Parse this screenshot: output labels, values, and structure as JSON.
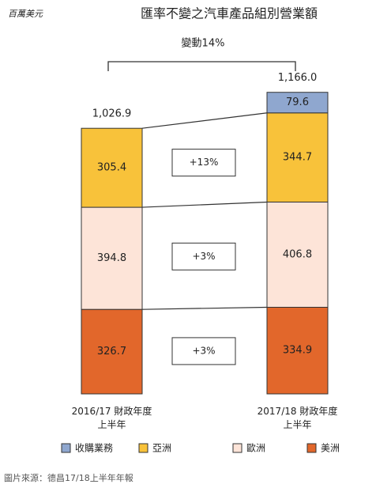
{
  "chart_data": {
    "type": "stacked-bar",
    "unit_label": "百萬美元",
    "title": "匯率不變之汽車產品組別營業額",
    "change_total_label": "變動14%",
    "categories": [
      "2016/17 財政年度\n上半年",
      "2017/18 財政年度\n上半年"
    ],
    "series": [
      {
        "name": "美洲",
        "color": "#e2672b",
        "values": [
          326.7,
          334.9
        ],
        "change_label": "+3%"
      },
      {
        "name": "歐洲",
        "color": "#fde4d8",
        "values": [
          394.8,
          406.8
        ],
        "change_label": "+3%"
      },
      {
        "name": "亞洲",
        "color": "#f8c23a",
        "values": [
          305.4,
          344.7
        ],
        "change_label": "+13%"
      },
      {
        "name": "收購業務",
        "color": "#8fa7cf",
        "values": [
          null,
          79.6
        ]
      }
    ],
    "legend_order": [
      3,
      2,
      1,
      0
    ],
    "totals": [
      1026.9,
      1166.0
    ],
    "total_labels": [
      "1,026.9",
      "1,166.0"
    ],
    "source": "圖片來源：德昌17/18上半年年報"
  }
}
